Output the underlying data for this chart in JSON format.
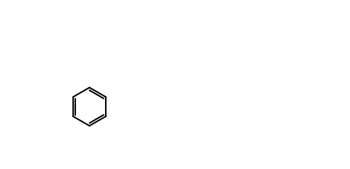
{
  "figsize": [
    4.93,
    2.38
  ],
  "dpi": 100,
  "background": "#ffffff",
  "line_color": "#000000",
  "lw": 1.5,
  "font_size": 7.5
}
